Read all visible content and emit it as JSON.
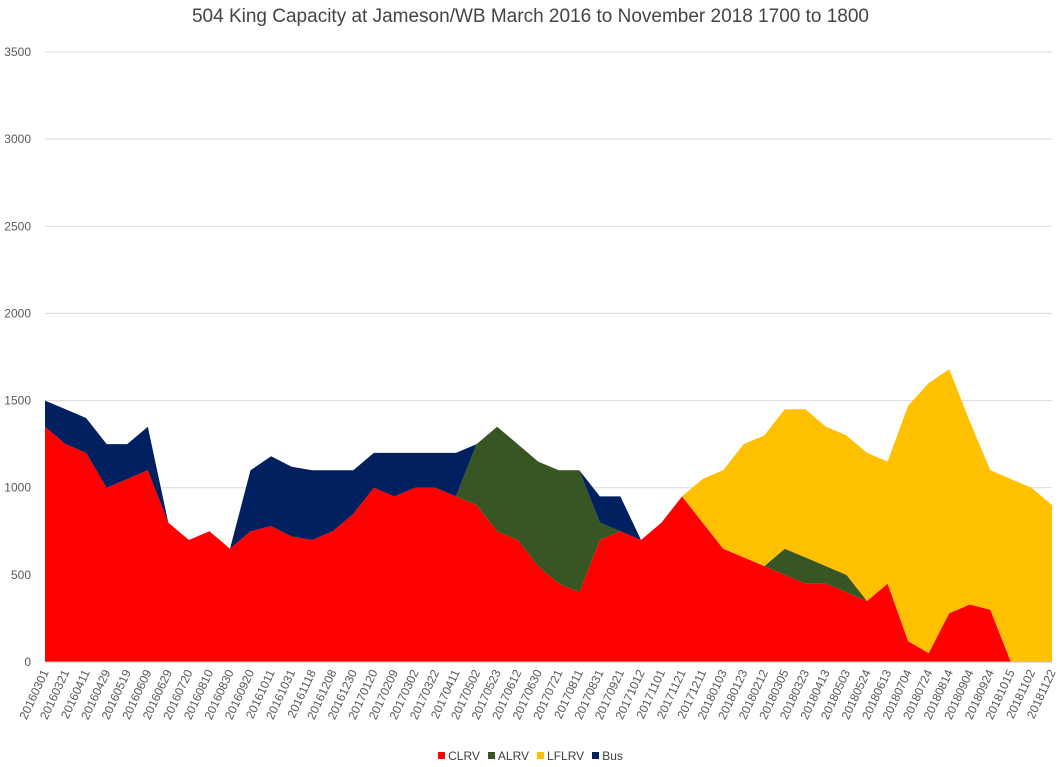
{
  "chart_data": {
    "type": "area",
    "stacked": true,
    "title": "504 King Capacity at Jameson/WB March 2016 to November 2018  1700 to 1800",
    "xlabel": "",
    "ylabel": "",
    "ylim": [
      0,
      3500
    ],
    "yticks": [
      0,
      500,
      1000,
      1500,
      2000,
      2500,
      3000,
      3500
    ],
    "grid": true,
    "legend_position": "bottom",
    "categories": [
      "20160301",
      "20160321",
      "20160411",
      "20160429",
      "20160519",
      "20160609",
      "20160629",
      "20160720",
      "20160810",
      "20160830",
      "20160920",
      "20161011",
      "20161031",
      "20161118",
      "20161208",
      "20161230",
      "20170120",
      "20170209",
      "20170302",
      "20170322",
      "20170411",
      "20170502",
      "20170523",
      "20170612",
      "20170630",
      "20170721",
      "20170811",
      "20170831",
      "20170921",
      "20171012",
      "20171101",
      "20171121",
      "20171211",
      "20180103",
      "20180123",
      "20180212",
      "20180305",
      "20180323",
      "20180413",
      "20180503",
      "20180524",
      "20180613",
      "20180704",
      "20180724",
      "20180814",
      "20180904",
      "20180924",
      "20181015",
      "20181102",
      "20181122"
    ],
    "series": [
      {
        "name": "CLRV",
        "color": "#FF0000",
        "values": [
          1350,
          1250,
          1200,
          1000,
          1050,
          1100,
          800,
          700,
          750,
          650,
          750,
          780,
          720,
          700,
          750,
          850,
          1000,
          950,
          1000,
          1000,
          950,
          900,
          750,
          700,
          550,
          450,
          400,
          700,
          750,
          700,
          800,
          950,
          800,
          650,
          600,
          550,
          500,
          450,
          450,
          400,
          350,
          450,
          120,
          50,
          280,
          330,
          300,
          0,
          0,
          0
        ]
      },
      {
        "name": "ALRV",
        "color": "#375623",
        "values": [
          0,
          0,
          0,
          0,
          0,
          0,
          0,
          0,
          0,
          0,
          0,
          0,
          0,
          0,
          0,
          0,
          0,
          0,
          0,
          0,
          0,
          350,
          600,
          550,
          600,
          650,
          700,
          100,
          0,
          0,
          0,
          0,
          0,
          0,
          0,
          0,
          150,
          150,
          100,
          100,
          0,
          0,
          0,
          0,
          0,
          0,
          0,
          0,
          0,
          0
        ]
      },
      {
        "name": "LFLRV",
        "color": "#FFC000",
        "values": [
          0,
          0,
          0,
          0,
          0,
          0,
          0,
          0,
          0,
          0,
          0,
          0,
          0,
          0,
          0,
          0,
          0,
          0,
          0,
          0,
          0,
          0,
          0,
          0,
          0,
          0,
          0,
          0,
          0,
          0,
          0,
          0,
          250,
          450,
          650,
          750,
          800,
          850,
          800,
          800,
          850,
          700,
          1350,
          1550,
          1400,
          1050,
          800,
          1050,
          1000,
          900
        ]
      },
      {
        "name": "Bus",
        "color": "#002060",
        "values": [
          150,
          200,
          200,
          250,
          200,
          250,
          0,
          0,
          0,
          0,
          350,
          400,
          400,
          400,
          350,
          250,
          200,
          250,
          200,
          200,
          250,
          0,
          0,
          0,
          0,
          0,
          0,
          150,
          200,
          0,
          0,
          0,
          0,
          0,
          0,
          0,
          0,
          0,
          0,
          0,
          0,
          0,
          0,
          0,
          0,
          0,
          0,
          0,
          0,
          0
        ]
      }
    ]
  }
}
